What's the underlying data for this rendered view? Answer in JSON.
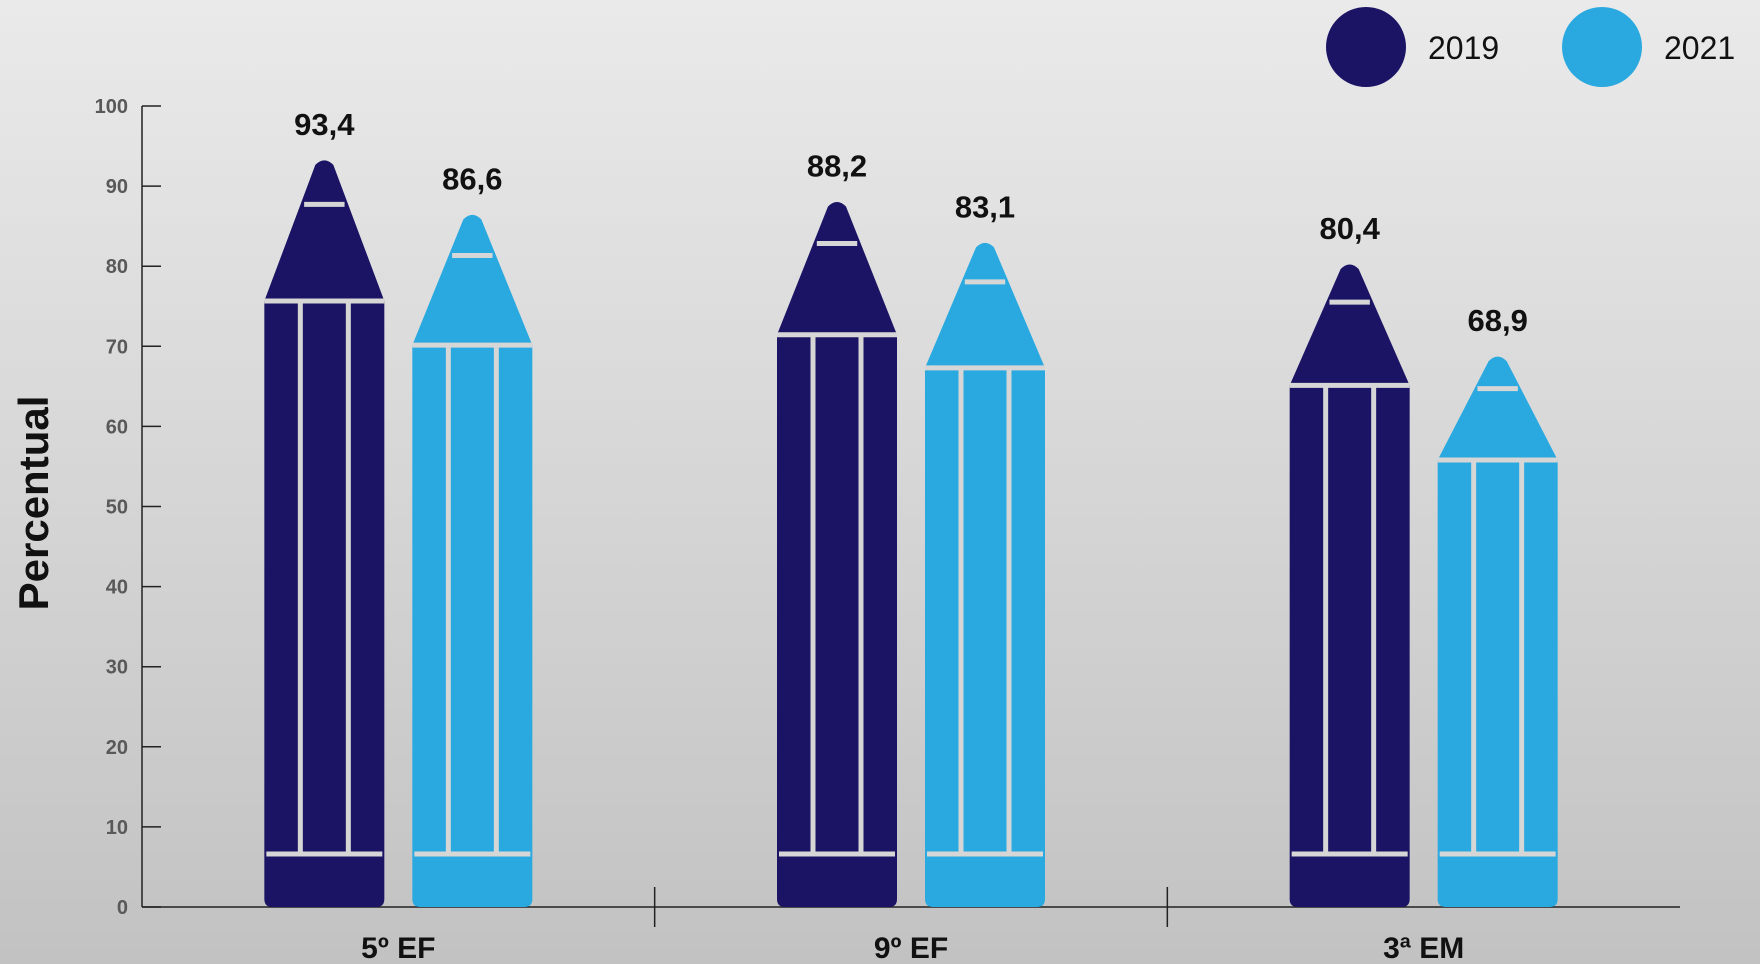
{
  "chart_data": {
    "type": "bar",
    "ylabel": "Percentual",
    "ylim": [
      0,
      100
    ],
    "yticks": [
      "0",
      "10",
      "20",
      "30",
      "40",
      "50",
      "60",
      "70",
      "80",
      "90",
      "100"
    ],
    "categories": [
      "5º EF",
      "9º EF",
      "3ª EM"
    ],
    "series": [
      {
        "name": "2019",
        "color": "#1b1464",
        "values": [
          93.4,
          88.2,
          80.4
        ],
        "labels": [
          "93,4",
          "88,2",
          "80,4"
        ]
      },
      {
        "name": "2021",
        "color": "#29a9e0",
        "values": [
          86.6,
          83.1,
          68.9
        ],
        "labels": [
          "86,6",
          "83,1",
          "68,9"
        ]
      }
    ],
    "legend_position": "top-right",
    "grid": false,
    "mark_shape": "pencil"
  }
}
